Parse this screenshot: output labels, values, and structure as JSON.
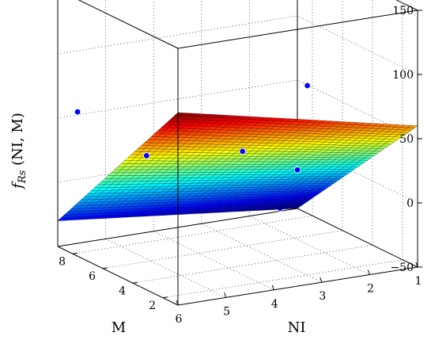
{
  "chart_data": {
    "type": "surface",
    "zlabel_main": "f",
    "zlabel_sub": "Rs",
    "zlabel_args": " (NI, M)",
    "xlabel": "M",
    "ylabel": "NI",
    "x_ticks": [
      "2",
      "4",
      "6",
      "8"
    ],
    "y_ticks": [
      "6",
      "5",
      "4",
      "3",
      "2",
      "1"
    ],
    "z_ticks": [
      "150",
      "100",
      "50",
      "0",
      "−50"
    ],
    "xlim": [
      1,
      9
    ],
    "ylim": [
      1,
      6
    ],
    "zlim": [
      -50,
      150
    ],
    "grid": true,
    "colormap": "jet",
    "surface": {
      "corners": [
        {
          "m": 1,
          "ni": 6,
          "z": 100
        },
        {
          "m": 1,
          "ni": 1,
          "z": 60
        },
        {
          "m": 9,
          "ni": 6,
          "z": -30
        },
        {
          "m": 9,
          "ni": 1,
          "z": -50
        }
      ]
    },
    "points": [
      {
        "m": 1,
        "ni": 5.6,
        "z": 65
      },
      {
        "m": 1,
        "ni": 3.3,
        "z": 105
      },
      {
        "m": 5,
        "ni": 5.4,
        "z": 40
      },
      {
        "m": 8,
        "ni": 5.9,
        "z": 60
      },
      {
        "m": 2.5,
        "ni": 1.2,
        "z": 40
      },
      {
        "m": 6,
        "ni": 2.3,
        "z": -25
      },
      {
        "m": 8.5,
        "ni": 2.3,
        "z": 5
      },
      {
        "m": 9,
        "ni": 1,
        "z": -20
      }
    ],
    "point_color": "#0000ff"
  }
}
